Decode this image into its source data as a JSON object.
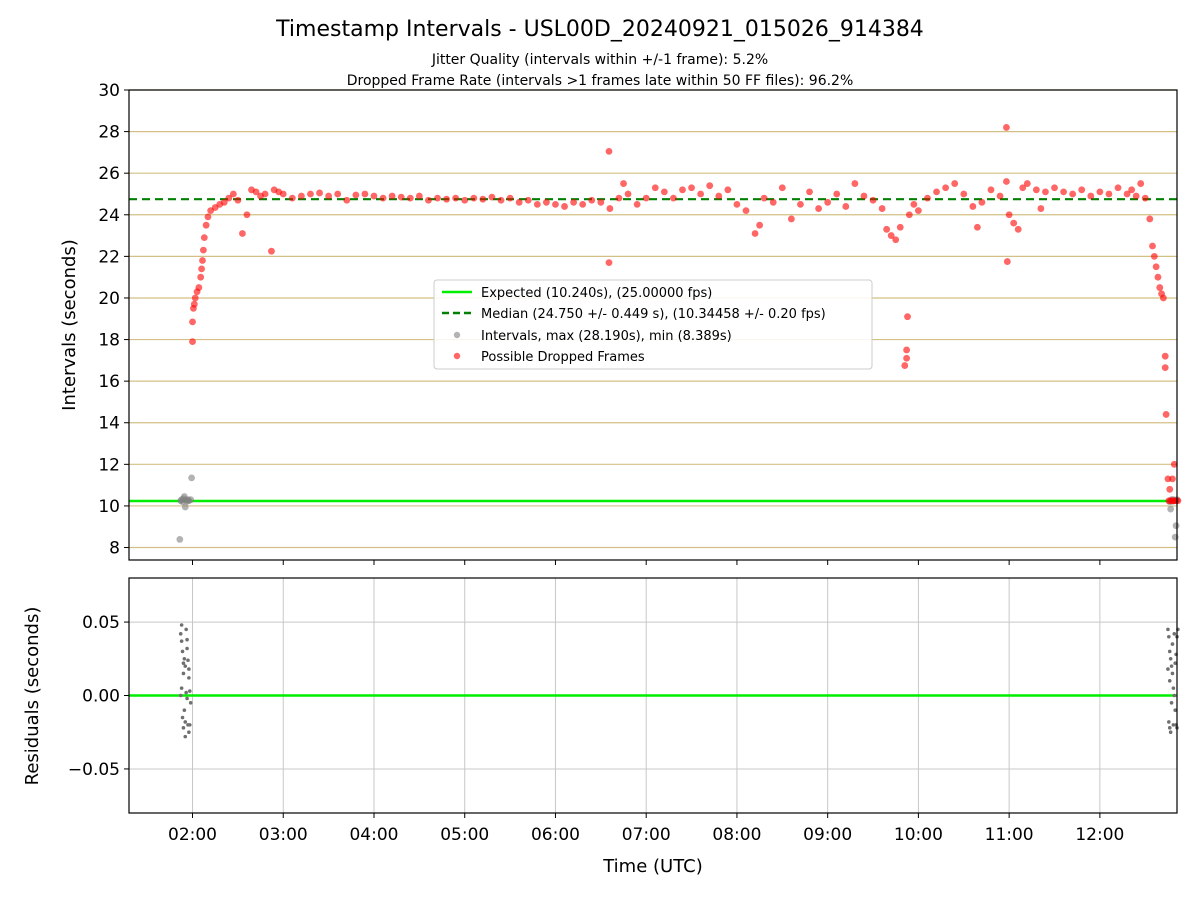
{
  "colors": {
    "expected": "#00ee00",
    "median": "#008000",
    "interval_points": "#808080",
    "dropped_points": "#ff0000",
    "hgrid_top": "#d4c084",
    "grid": "#c8c8c8",
    "residual_points": "#707070"
  },
  "chart_data": [
    {
      "type": "scatter",
      "title": "Timestamp Intervals - USL00D_20240921_015026_914384",
      "subtitle_1": "Jitter Quality (intervals within +/-1 frame): 5.2%",
      "subtitle_2": "Dropped Frame Rate (intervals >1 frames late within 50 FF files): 96.2%",
      "xlabel": "",
      "ylabel": "Intervals (seconds)",
      "ylim": [
        7.4,
        30
      ],
      "yticks": [
        8,
        10,
        12,
        14,
        16,
        18,
        20,
        22,
        24,
        26,
        28,
        30
      ],
      "ytick_labels": [
        "8",
        "10",
        "12",
        "14",
        "16",
        "18",
        "20",
        "22",
        "24",
        "26",
        "28",
        "30"
      ],
      "grid": "horizontal",
      "legend_placement": "center",
      "legend": [
        {
          "label": "Expected (10.240s), (25.00000 fps)",
          "kind": "line"
        },
        {
          "label": "Median (24.750 +/- 0.449 s), (10.34458 +/- 0.20 fps)",
          "kind": "dashed"
        },
        {
          "label": "Intervals, max (28.190s), min (8.389s)",
          "kind": "dot-gray"
        },
        {
          "label": "Possible Dropped Frames",
          "kind": "dot-red"
        }
      ],
      "expected_y": 10.24,
      "median_y": 24.75,
      "series": [
        {
          "name": "Intervals, max (28.190s), min (8.389s)",
          "points": [
            [
              1.86,
              8.39
            ],
            [
              1.87,
              10.25
            ],
            [
              1.88,
              10.3
            ],
            [
              1.89,
              10.2
            ],
            [
              1.9,
              10.35
            ],
            [
              1.91,
              10.45
            ],
            [
              1.92,
              9.95
            ],
            [
              1.93,
              10.28
            ],
            [
              1.94,
              10.22
            ],
            [
              1.95,
              10.3
            ],
            [
              1.96,
              10.25
            ],
            [
              1.98,
              10.3
            ],
            [
              1.99,
              11.35
            ],
            [
              12.77,
              10.2
            ],
            [
              12.78,
              9.85
            ],
            [
              12.79,
              10.3
            ],
            [
              12.8,
              10.22
            ],
            [
              12.81,
              10.3
            ],
            [
              12.82,
              10.25
            ],
            [
              12.83,
              8.5
            ],
            [
              12.84,
              9.05
            ],
            [
              12.85,
              10.3
            ]
          ]
        },
        {
          "name": "Possible Dropped Frames",
          "points": [
            [
              2.0,
              17.9
            ],
            [
              2.0,
              18.85
            ],
            [
              2.01,
              19.5
            ],
            [
              2.02,
              19.7
            ],
            [
              2.03,
              20.0
            ],
            [
              2.05,
              20.3
            ],
            [
              2.07,
              20.5
            ],
            [
              2.09,
              21.0
            ],
            [
              2.1,
              21.4
            ],
            [
              2.11,
              21.8
            ],
            [
              2.12,
              22.3
            ],
            [
              2.13,
              22.9
            ],
            [
              2.15,
              23.5
            ],
            [
              2.17,
              23.9
            ],
            [
              2.2,
              24.2
            ],
            [
              2.25,
              24.35
            ],
            [
              2.3,
              24.5
            ],
            [
              2.35,
              24.6
            ],
            [
              2.4,
              24.8
            ],
            [
              2.45,
              25.0
            ],
            [
              2.5,
              24.7
            ],
            [
              2.55,
              23.1
            ],
            [
              2.6,
              24.0
            ],
            [
              2.65,
              25.2
            ],
            [
              2.7,
              25.1
            ],
            [
              2.75,
              24.9
            ],
            [
              2.8,
              25.0
            ],
            [
              2.87,
              22.25
            ],
            [
              2.9,
              25.2
            ],
            [
              2.95,
              25.1
            ],
            [
              3.0,
              25.0
            ],
            [
              3.1,
              24.8
            ],
            [
              3.2,
              24.9
            ],
            [
              3.3,
              25.0
            ],
            [
              3.4,
              25.05
            ],
            [
              3.5,
              24.9
            ],
            [
              3.6,
              25.0
            ],
            [
              3.7,
              24.7
            ],
            [
              3.8,
              24.95
            ],
            [
              3.9,
              25.0
            ],
            [
              4.0,
              24.9
            ],
            [
              4.1,
              24.8
            ],
            [
              4.2,
              24.9
            ],
            [
              4.3,
              24.85
            ],
            [
              4.4,
              24.8
            ],
            [
              4.5,
              24.9
            ],
            [
              4.6,
              24.7
            ],
            [
              4.7,
              24.8
            ],
            [
              4.8,
              24.75
            ],
            [
              4.9,
              24.8
            ],
            [
              5.0,
              24.7
            ],
            [
              5.1,
              24.8
            ],
            [
              5.2,
              24.75
            ],
            [
              5.3,
              24.85
            ],
            [
              5.4,
              24.7
            ],
            [
              5.5,
              24.8
            ],
            [
              5.6,
              24.6
            ],
            [
              5.7,
              24.7
            ],
            [
              5.8,
              24.5
            ],
            [
              5.9,
              24.6
            ],
            [
              6.0,
              24.5
            ],
            [
              6.1,
              24.4
            ],
            [
              6.2,
              24.6
            ],
            [
              6.3,
              24.5
            ],
            [
              6.4,
              24.7
            ],
            [
              6.5,
              24.6
            ],
            [
              6.59,
              27.05
            ],
            [
              6.59,
              21.7
            ],
            [
              6.6,
              24.3
            ],
            [
              6.7,
              24.8
            ],
            [
              6.75,
              25.5
            ],
            [
              6.8,
              25.0
            ],
            [
              6.9,
              24.5
            ],
            [
              7.0,
              24.8
            ],
            [
              7.1,
              25.3
            ],
            [
              7.2,
              25.1
            ],
            [
              7.3,
              24.8
            ],
            [
              7.4,
              25.2
            ],
            [
              7.5,
              25.3
            ],
            [
              7.6,
              25.0
            ],
            [
              7.7,
              25.4
            ],
            [
              7.8,
              24.9
            ],
            [
              7.9,
              25.2
            ],
            [
              8.0,
              24.5
            ],
            [
              8.1,
              24.2
            ],
            [
              8.2,
              23.1
            ],
            [
              8.25,
              23.5
            ],
            [
              8.3,
              24.8
            ],
            [
              8.4,
              24.6
            ],
            [
              8.5,
              25.3
            ],
            [
              8.6,
              23.8
            ],
            [
              8.7,
              24.5
            ],
            [
              8.8,
              25.1
            ],
            [
              8.9,
              24.3
            ],
            [
              9.0,
              24.6
            ],
            [
              9.1,
              25.0
            ],
            [
              9.2,
              24.4
            ],
            [
              9.3,
              25.5
            ],
            [
              9.4,
              24.9
            ],
            [
              9.5,
              24.7
            ],
            [
              9.6,
              24.3
            ],
            [
              9.65,
              23.3
            ],
            [
              9.7,
              23.0
            ],
            [
              9.75,
              22.8
            ],
            [
              9.8,
              23.4
            ],
            [
              9.85,
              16.75
            ],
            [
              9.87,
              17.1
            ],
            [
              9.87,
              17.5
            ],
            [
              9.88,
              19.1
            ],
            [
              9.9,
              24.0
            ],
            [
              9.95,
              24.5
            ],
            [
              10.0,
              24.2
            ],
            [
              10.1,
              24.8
            ],
            [
              10.2,
              25.1
            ],
            [
              10.3,
              25.3
            ],
            [
              10.4,
              25.5
            ],
            [
              10.5,
              25.0
            ],
            [
              10.6,
              24.4
            ],
            [
              10.65,
              23.4
            ],
            [
              10.7,
              24.6
            ],
            [
              10.8,
              25.2
            ],
            [
              10.9,
              24.9
            ],
            [
              10.97,
              28.2
            ],
            [
              10.97,
              25.6
            ],
            [
              10.98,
              21.75
            ],
            [
              11.0,
              24.0
            ],
            [
              11.05,
              23.6
            ],
            [
              11.1,
              23.3
            ],
            [
              11.15,
              25.3
            ],
            [
              11.2,
              25.5
            ],
            [
              11.3,
              25.2
            ],
            [
              11.35,
              24.3
            ],
            [
              11.4,
              25.1
            ],
            [
              11.5,
              25.3
            ],
            [
              11.6,
              25.1
            ],
            [
              11.7,
              25.0
            ],
            [
              11.8,
              25.2
            ],
            [
              11.9,
              24.9
            ],
            [
              12.0,
              25.1
            ],
            [
              12.1,
              25.0
            ],
            [
              12.2,
              25.3
            ],
            [
              12.3,
              25.0
            ],
            [
              12.35,
              25.2
            ],
            [
              12.4,
              24.9
            ],
            [
              12.45,
              25.5
            ],
            [
              12.5,
              24.8
            ],
            [
              12.55,
              23.8
            ],
            [
              12.58,
              22.5
            ],
            [
              12.6,
              22.0
            ],
            [
              12.62,
              21.5
            ],
            [
              12.64,
              21.0
            ],
            [
              12.66,
              20.5
            ],
            [
              12.68,
              20.2
            ],
            [
              12.7,
              20.0
            ],
            [
              12.72,
              17.2
            ],
            [
              12.72,
              16.65
            ],
            [
              12.73,
              14.4
            ],
            [
              12.75,
              11.3
            ],
            [
              12.77,
              10.8
            ],
            [
              12.8,
              11.3
            ],
            [
              12.82,
              12.0
            ],
            [
              12.76,
              10.25
            ],
            [
              12.78,
              10.25
            ],
            [
              12.8,
              10.25
            ],
            [
              12.82,
              10.25
            ],
            [
              12.84,
              10.25
            ],
            [
              12.86,
              10.25
            ]
          ]
        }
      ]
    },
    {
      "type": "scatter",
      "xlabel": "Time (UTC)",
      "ylabel": "Residuals (seconds)",
      "ylim": [
        -0.08,
        0.08
      ],
      "yticks": [
        0.05,
        0.0,
        -0.05
      ],
      "ytick_labels": [
        "0.05",
        "0.00",
        "−0.05"
      ],
      "xlim": [
        1.3,
        12.85
      ],
      "xticks": [
        2,
        3,
        4,
        5,
        6,
        7,
        8,
        9,
        10,
        11,
        12
      ],
      "xtick_labels": [
        "02:00",
        "03:00",
        "04:00",
        "05:00",
        "06:00",
        "07:00",
        "08:00",
        "09:00",
        "10:00",
        "11:00",
        "12:00"
      ],
      "grid": "both",
      "zero_line_y": 0,
      "series": [
        {
          "name": "",
          "points": [
            [
              1.87,
              0.042
            ],
            [
              1.88,
              0.048
            ],
            [
              1.89,
              0.03
            ],
            [
              1.9,
              0.022
            ],
            [
              1.91,
              0.025
            ],
            [
              1.92,
              0.02
            ],
            [
              1.93,
              0.002
            ],
            [
              1.94,
              -0.002
            ],
            [
              1.95,
              -0.02
            ],
            [
              1.96,
              -0.025
            ],
            [
              1.88,
              0.037
            ],
            [
              1.9,
              0.015
            ],
            [
              1.91,
              -0.01
            ],
            [
              1.92,
              -0.018
            ],
            [
              1.93,
              0.045
            ],
            [
              1.94,
              0.032
            ],
            [
              1.95,
              0.024
            ],
            [
              1.96,
              0.018
            ],
            [
              1.97,
              0.003
            ],
            [
              1.98,
              -0.005
            ],
            [
              1.89,
              -0.015
            ],
            [
              1.9,
              -0.022
            ],
            [
              1.87,
              0.0
            ],
            [
              1.88,
              0.005
            ],
            [
              1.97,
              -0.02
            ],
            [
              1.96,
              0.012
            ],
            [
              1.94,
              0.038
            ],
            [
              1.92,
              -0.028
            ],
            [
              12.75,
              0.045
            ],
            [
              12.76,
              0.04
            ],
            [
              12.77,
              0.03
            ],
            [
              12.78,
              0.025
            ],
            [
              12.79,
              0.02
            ],
            [
              12.8,
              0.015
            ],
            [
              12.81,
              0.005
            ],
            [
              12.82,
              0.0
            ],
            [
              12.83,
              -0.01
            ],
            [
              12.84,
              -0.02
            ],
            [
              12.85,
              -0.022
            ],
            [
              12.76,
              -0.018
            ],
            [
              12.78,
              -0.025
            ],
            [
              12.8,
              0.035
            ],
            [
              12.82,
              0.042
            ],
            [
              12.84,
              0.028
            ],
            [
              12.77,
              0.01
            ],
            [
              12.79,
              -0.005
            ],
            [
              12.81,
              -0.02
            ],
            [
              12.83,
              0.022
            ],
            [
              12.85,
              0.04
            ],
            [
              12.75,
              0.018
            ],
            [
              12.77,
              -0.022
            ],
            [
              12.86,
              0.045
            ]
          ]
        }
      ]
    }
  ]
}
